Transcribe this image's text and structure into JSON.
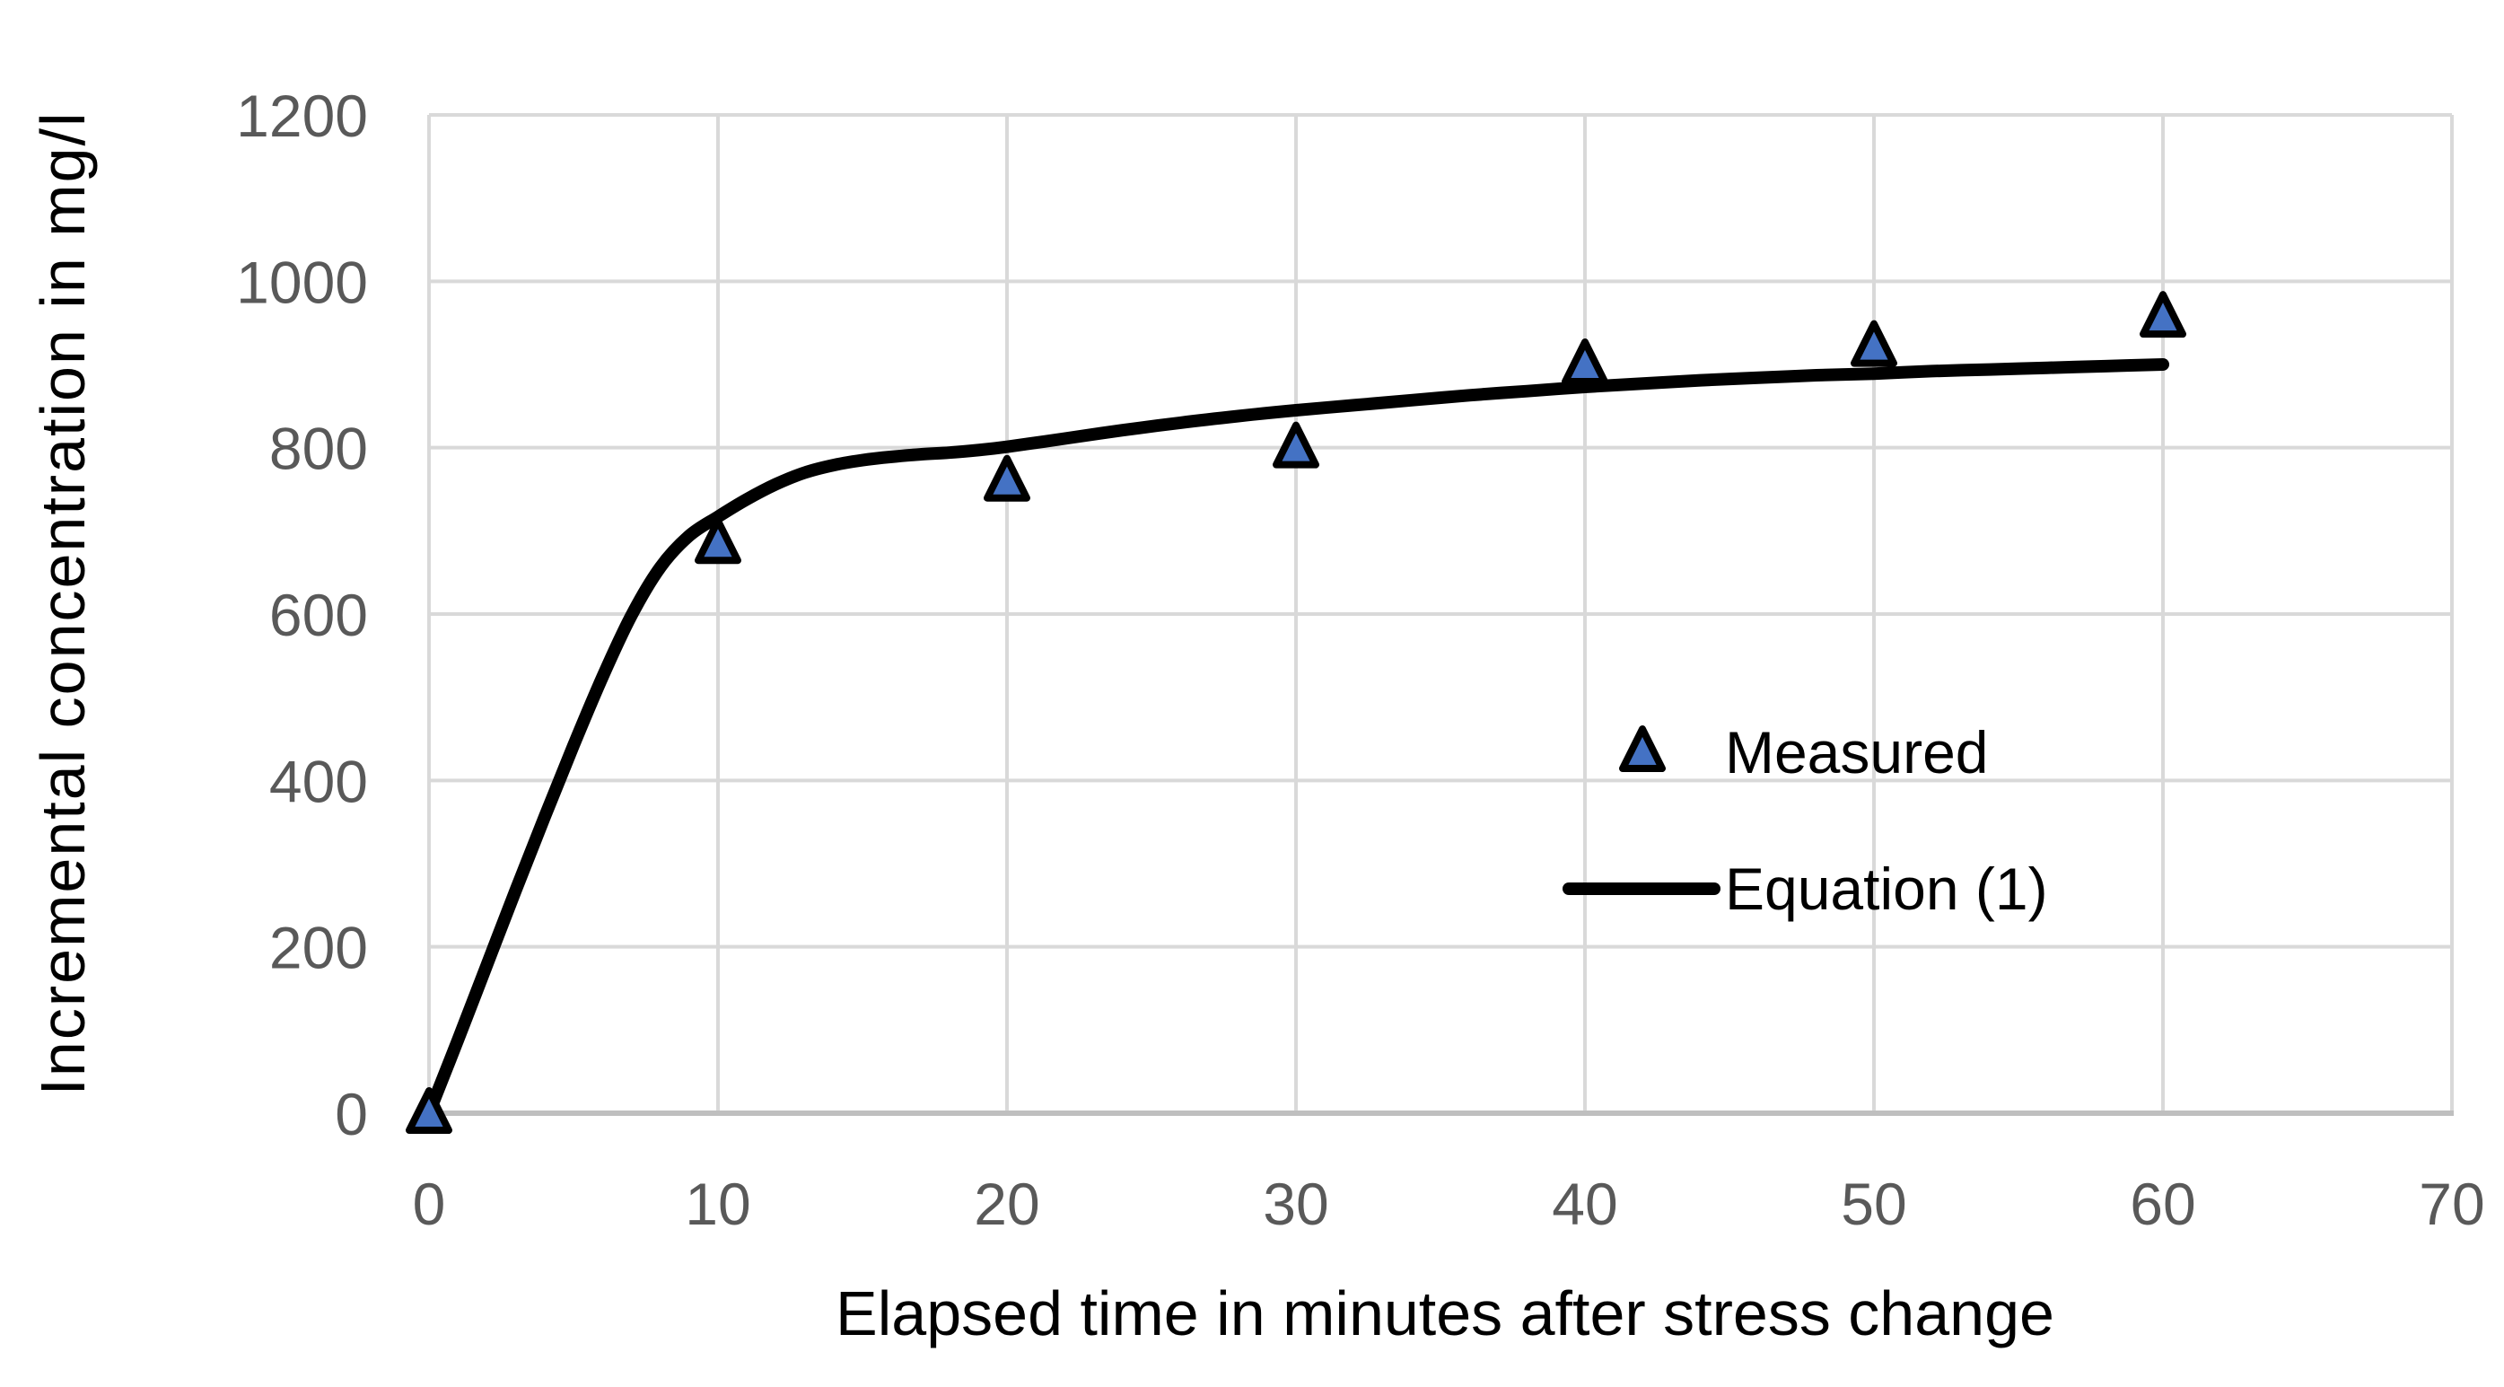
{
  "chart_data": {
    "type": "line",
    "title": "",
    "xlabel": "Elapsed time in minutes after stress change",
    "ylabel": "Incremental concentration in mg/l",
    "xlim": [
      0,
      70
    ],
    "ylim": [
      0,
      1200
    ],
    "x_ticks": [
      0,
      10,
      20,
      30,
      40,
      50,
      60,
      70
    ],
    "y_ticks": [
      0,
      200,
      400,
      600,
      800,
      1000,
      1200
    ],
    "grid": "both",
    "legend_position": "inside-right",
    "series": [
      {
        "name": "Measured",
        "type": "scatter",
        "marker": "triangle",
        "x": [
          0,
          10,
          20,
          30,
          40,
          50,
          60
        ],
        "y": [
          0,
          685,
          760,
          800,
          900,
          922,
          957
        ]
      },
      {
        "name": "Equation (1)",
        "type": "line",
        "x": [
          0,
          1,
          2,
          3,
          4,
          5,
          6,
          7,
          8,
          9,
          10,
          11,
          12,
          13,
          14,
          15,
          16,
          17,
          18,
          19,
          20,
          22,
          24,
          26,
          28,
          30,
          32,
          34,
          36,
          38,
          40,
          42,
          44,
          46,
          48,
          50,
          52,
          54,
          56,
          58,
          60
        ],
        "y": [
          0,
          88,
          178,
          268,
          356,
          442,
          524,
          598,
          656,
          694,
          717,
          738,
          756,
          770,
          779,
          785,
          789,
          792,
          794,
          797,
          801,
          811,
          821,
          830,
          838,
          845,
          851,
          857,
          863,
          868,
          873,
          877,
          881,
          884,
          887,
          889,
          892,
          894,
          896,
          898,
          900
        ]
      }
    ],
    "style": {
      "marker_fill": "#4472C4",
      "marker_stroke": "#000000",
      "line_color": "#000000",
      "gridline_color": "#D9D9D9",
      "axis_line_color": "#BFBFBF",
      "tick_label_color": "#595959",
      "text_color": "#000000",
      "background": "#FFFFFF"
    }
  }
}
